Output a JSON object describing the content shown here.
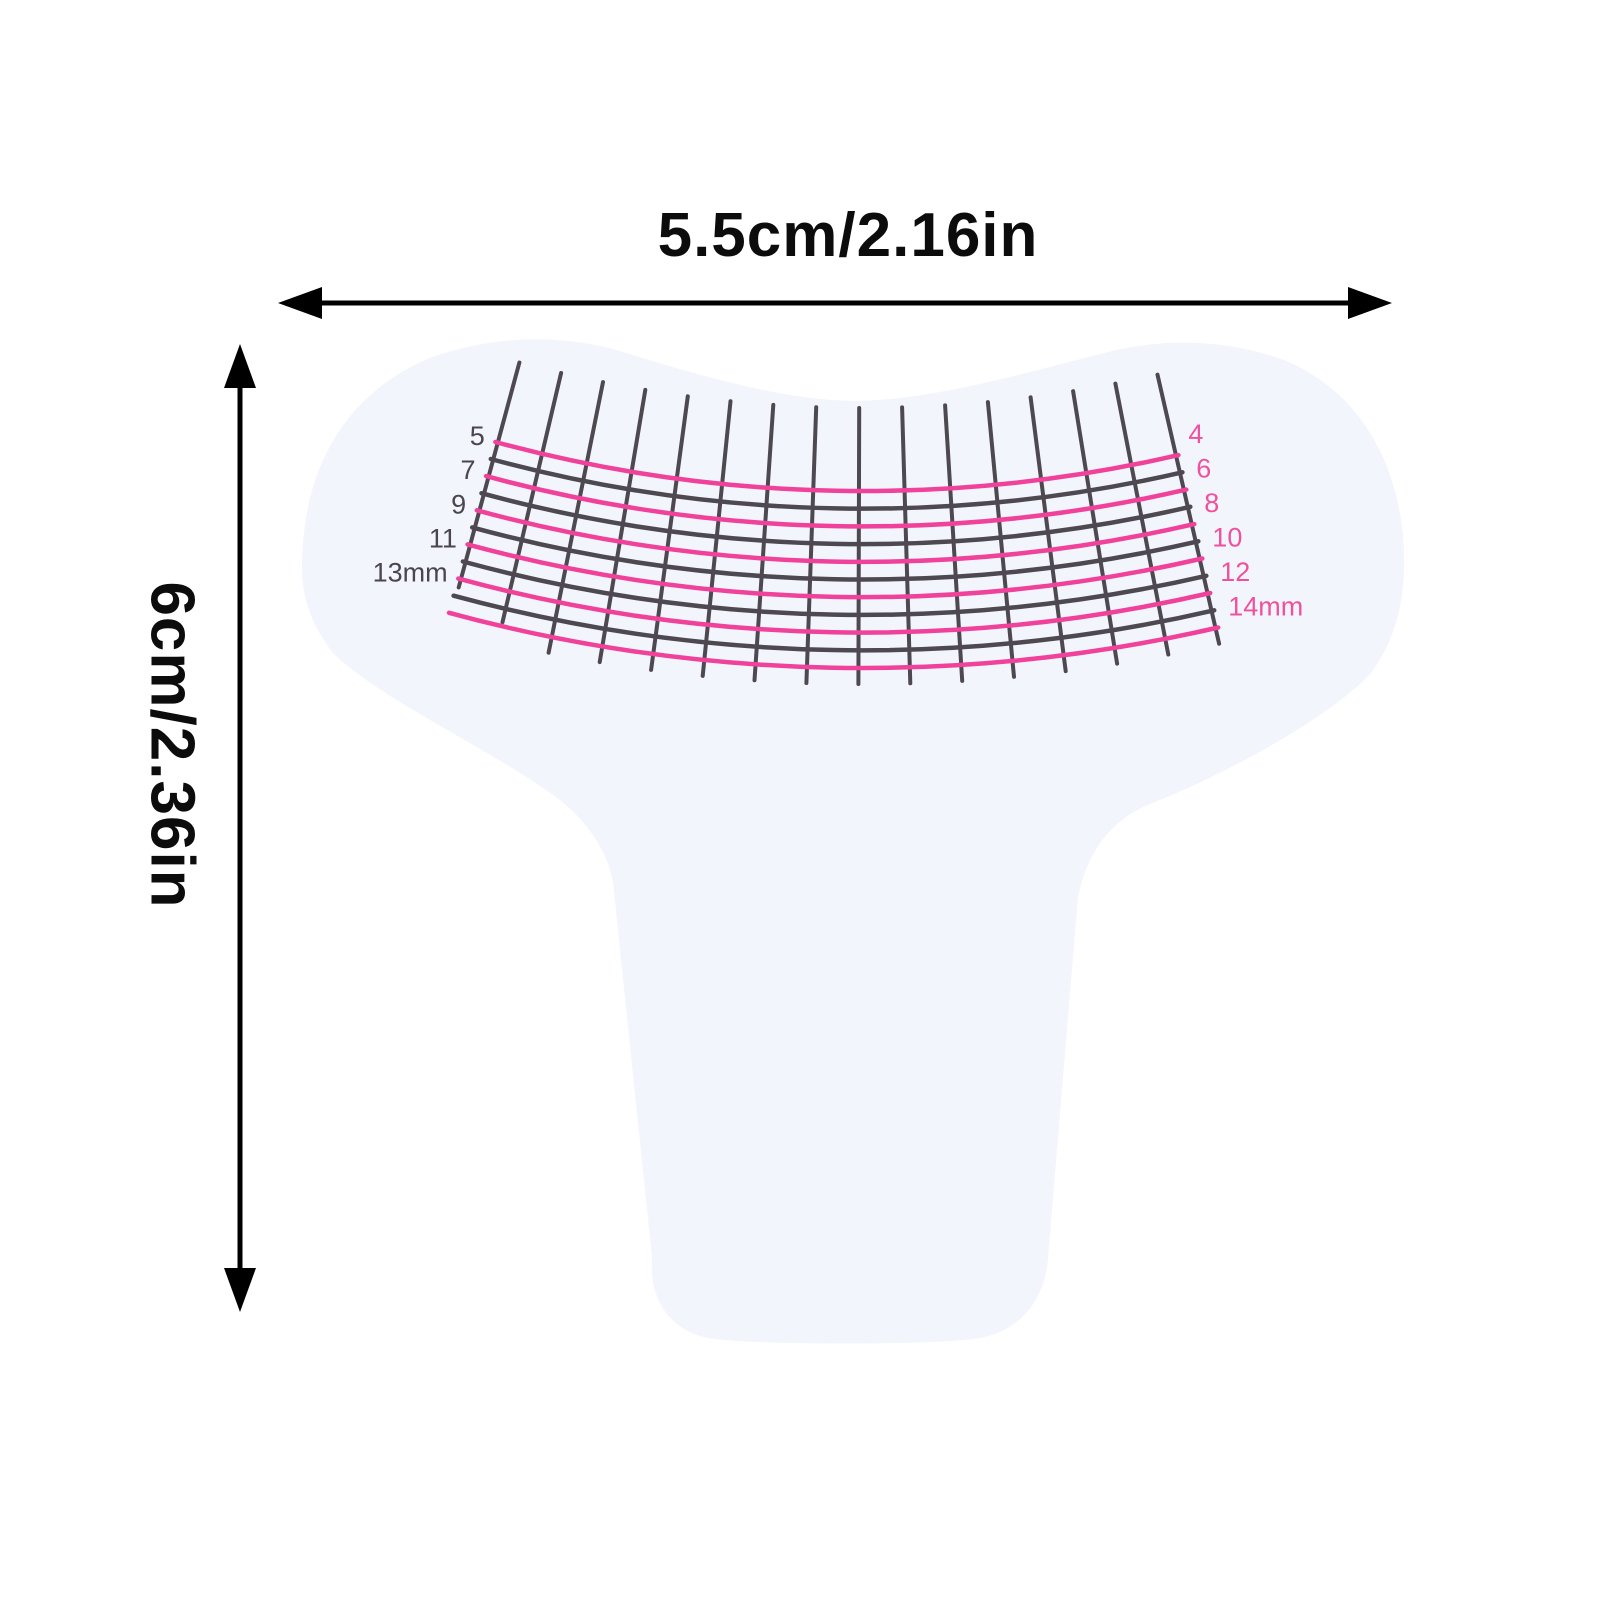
{
  "image": {
    "type": "product-dimension-diagram",
    "subject": "T-shaped eyelash extension measuring sticker pad",
    "background": "#ffffff"
  },
  "dimension_annotations": {
    "width": {
      "label": "5.5cm/2.16in"
    },
    "height": {
      "label": "6cm/2.36in"
    },
    "arrow_color": "#000000"
  },
  "pad": {
    "fill": "#f2f5fc",
    "grid": {
      "dark_color": "#4e4850",
      "pink_color": "#f0429b",
      "label_dark_color": "#4a4550",
      "label_pink_color": "#f0519e",
      "radial_line_count": 16,
      "arcs": [
        {
          "value": 4,
          "label": "4",
          "side": "right",
          "color": "pink"
        },
        {
          "value": 5,
          "label": "5",
          "side": "left",
          "color": "dark"
        },
        {
          "value": 6,
          "label": "6",
          "side": "right",
          "color": "pink"
        },
        {
          "value": 7,
          "label": "7",
          "side": "left",
          "color": "dark"
        },
        {
          "value": 8,
          "label": "8",
          "side": "right",
          "color": "pink"
        },
        {
          "value": 9,
          "label": "9",
          "side": "left",
          "color": "dark"
        },
        {
          "value": 10,
          "label": "10",
          "side": "right",
          "color": "pink"
        },
        {
          "value": 11,
          "label": "11",
          "side": "left",
          "color": "dark"
        },
        {
          "value": 12,
          "label": "12",
          "side": "right",
          "color": "pink"
        },
        {
          "value": 13,
          "label": "13mm",
          "side": "left",
          "color": "dark"
        },
        {
          "value": 14,
          "label": "14mm",
          "side": "right",
          "color": "pink"
        }
      ]
    }
  }
}
